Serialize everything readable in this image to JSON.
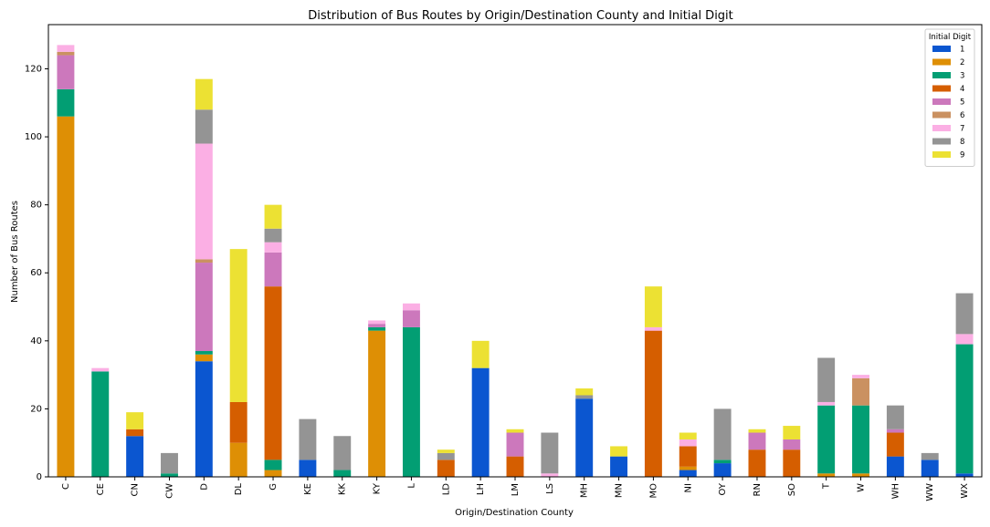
{
  "chart_data": {
    "type": "bar",
    "stacked": true,
    "title": "Distribution of Bus Routes by Origin/Destination County and Initial Digit",
    "xlabel": "Origin/Destination County",
    "ylabel": "Number of Bus Routes",
    "ylim": [
      0,
      133
    ],
    "yticks": [
      0,
      20,
      40,
      60,
      80,
      100,
      120
    ],
    "grid": false,
    "legend": {
      "title": "Initial Digit",
      "placement": "top-right"
    },
    "categories": [
      "C",
      "CE",
      "CN",
      "CW",
      "D",
      "DL",
      "G",
      "KE",
      "KK",
      "KY",
      "L",
      "LD",
      "LH",
      "LM",
      "LS",
      "MH",
      "MN",
      "MO",
      "NI",
      "OY",
      "RN",
      "SO",
      "T",
      "W",
      "WH",
      "WW",
      "WX"
    ],
    "series": [
      {
        "name": "1",
        "color": "#0b56d0",
        "values": [
          0,
          0,
          12,
          0,
          34,
          0,
          0,
          5,
          0,
          0,
          0,
          0,
          32,
          0,
          0,
          23,
          6,
          0,
          2,
          4,
          0,
          0,
          0,
          0,
          6,
          5,
          1
        ]
      },
      {
        "name": "2",
        "color": "#de8f05",
        "values": [
          106,
          0,
          0,
          0,
          2,
          10,
          2,
          0,
          0,
          43,
          0,
          0,
          0,
          0,
          0,
          0,
          0,
          0,
          1,
          0,
          0,
          0,
          1,
          1,
          0,
          0,
          0
        ]
      },
      {
        "name": "3",
        "color": "#029e73",
        "values": [
          8,
          31,
          0,
          1,
          1,
          0,
          3,
          0,
          2,
          1,
          44,
          0,
          0,
          0,
          0,
          0,
          0,
          0,
          0,
          1,
          0,
          0,
          20,
          20,
          0,
          0,
          38
        ]
      },
      {
        "name": "4",
        "color": "#d55e00",
        "values": [
          0,
          0,
          2,
          0,
          0,
          12,
          51,
          0,
          0,
          0,
          0,
          5,
          0,
          6,
          0,
          0,
          0,
          43,
          6,
          0,
          8,
          8,
          0,
          0,
          7,
          0,
          0
        ]
      },
      {
        "name": "5",
        "color": "#cc78bc",
        "values": [
          10,
          0,
          0,
          0,
          26,
          0,
          10,
          0,
          0,
          1,
          5,
          0,
          0,
          7,
          0,
          0,
          0,
          0,
          0,
          0,
          5,
          3,
          0,
          0,
          1,
          0,
          0
        ]
      },
      {
        "name": "6",
        "color": "#ca9161",
        "values": [
          1,
          0,
          0,
          0,
          1,
          0,
          0,
          0,
          0,
          0,
          0,
          0,
          0,
          0,
          0,
          0,
          0,
          0,
          0,
          0,
          0,
          0,
          0,
          8,
          0,
          0,
          0
        ]
      },
      {
        "name": "7",
        "color": "#fbafe4",
        "values": [
          2,
          1,
          0,
          0,
          34,
          0,
          3,
          0,
          0,
          1,
          2,
          0,
          0,
          0,
          1,
          0,
          0,
          1,
          2,
          0,
          0,
          0,
          1,
          1,
          0,
          0,
          3
        ]
      },
      {
        "name": "8",
        "color": "#949494",
        "values": [
          0,
          0,
          0,
          6,
          10,
          0,
          4,
          12,
          10,
          0,
          0,
          2,
          0,
          0,
          12,
          1,
          0,
          0,
          0,
          15,
          0,
          0,
          13,
          0,
          7,
          2,
          12
        ]
      },
      {
        "name": "9",
        "color": "#ece133",
        "values": [
          0,
          0,
          5,
          0,
          9,
          45,
          7,
          0,
          0,
          0,
          0,
          1,
          8,
          1,
          0,
          2,
          3,
          12,
          2,
          0,
          1,
          4,
          0,
          0,
          0,
          0,
          0
        ]
      }
    ]
  }
}
